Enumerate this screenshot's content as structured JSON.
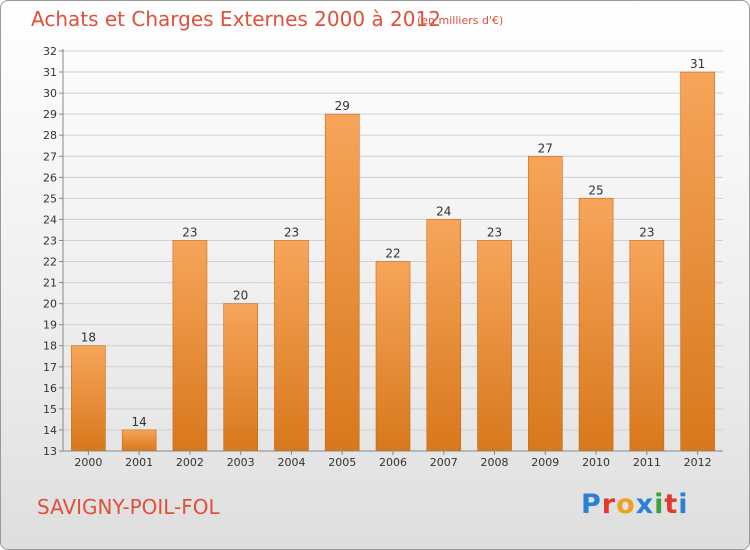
{
  "header": {
    "title": "Achats et Charges Externes 2000 à 2012",
    "unit": "(en milliers d'€)"
  },
  "footer": {
    "commune": "SAVIGNY-POIL-FOL",
    "logo": "Proxiti",
    "logo_colors": [
      "#2a7fd6",
      "#e6372e",
      "#f0a020",
      "#2a7fd6",
      "#3aa33a",
      "#e6372e",
      "#2a7fd6"
    ]
  },
  "colors": {
    "title": "#e0503a",
    "bar_light": "#f6a55a",
    "bar_dark": "#d8781c",
    "axis": "#888888",
    "grid": "#d0d0d0"
  },
  "chart_data": {
    "type": "bar",
    "title": "Achats et Charges Externes 2000 à 2012",
    "subtitle": "(en milliers d'€)",
    "xlabel": "",
    "ylabel": "",
    "categories": [
      "2000",
      "2001",
      "2002",
      "2003",
      "2004",
      "2005",
      "2006",
      "2007",
      "2008",
      "2009",
      "2010",
      "2011",
      "2012"
    ],
    "values": [
      18,
      14,
      23,
      20,
      23,
      29,
      22,
      24,
      23,
      27,
      25,
      23,
      31
    ],
    "ylim": [
      13,
      32
    ],
    "yticks": [
      13,
      14,
      15,
      16,
      17,
      18,
      19,
      20,
      21,
      22,
      23,
      24,
      25,
      26,
      27,
      28,
      29,
      30,
      31,
      32
    ],
    "grid": true,
    "legend": "none"
  }
}
